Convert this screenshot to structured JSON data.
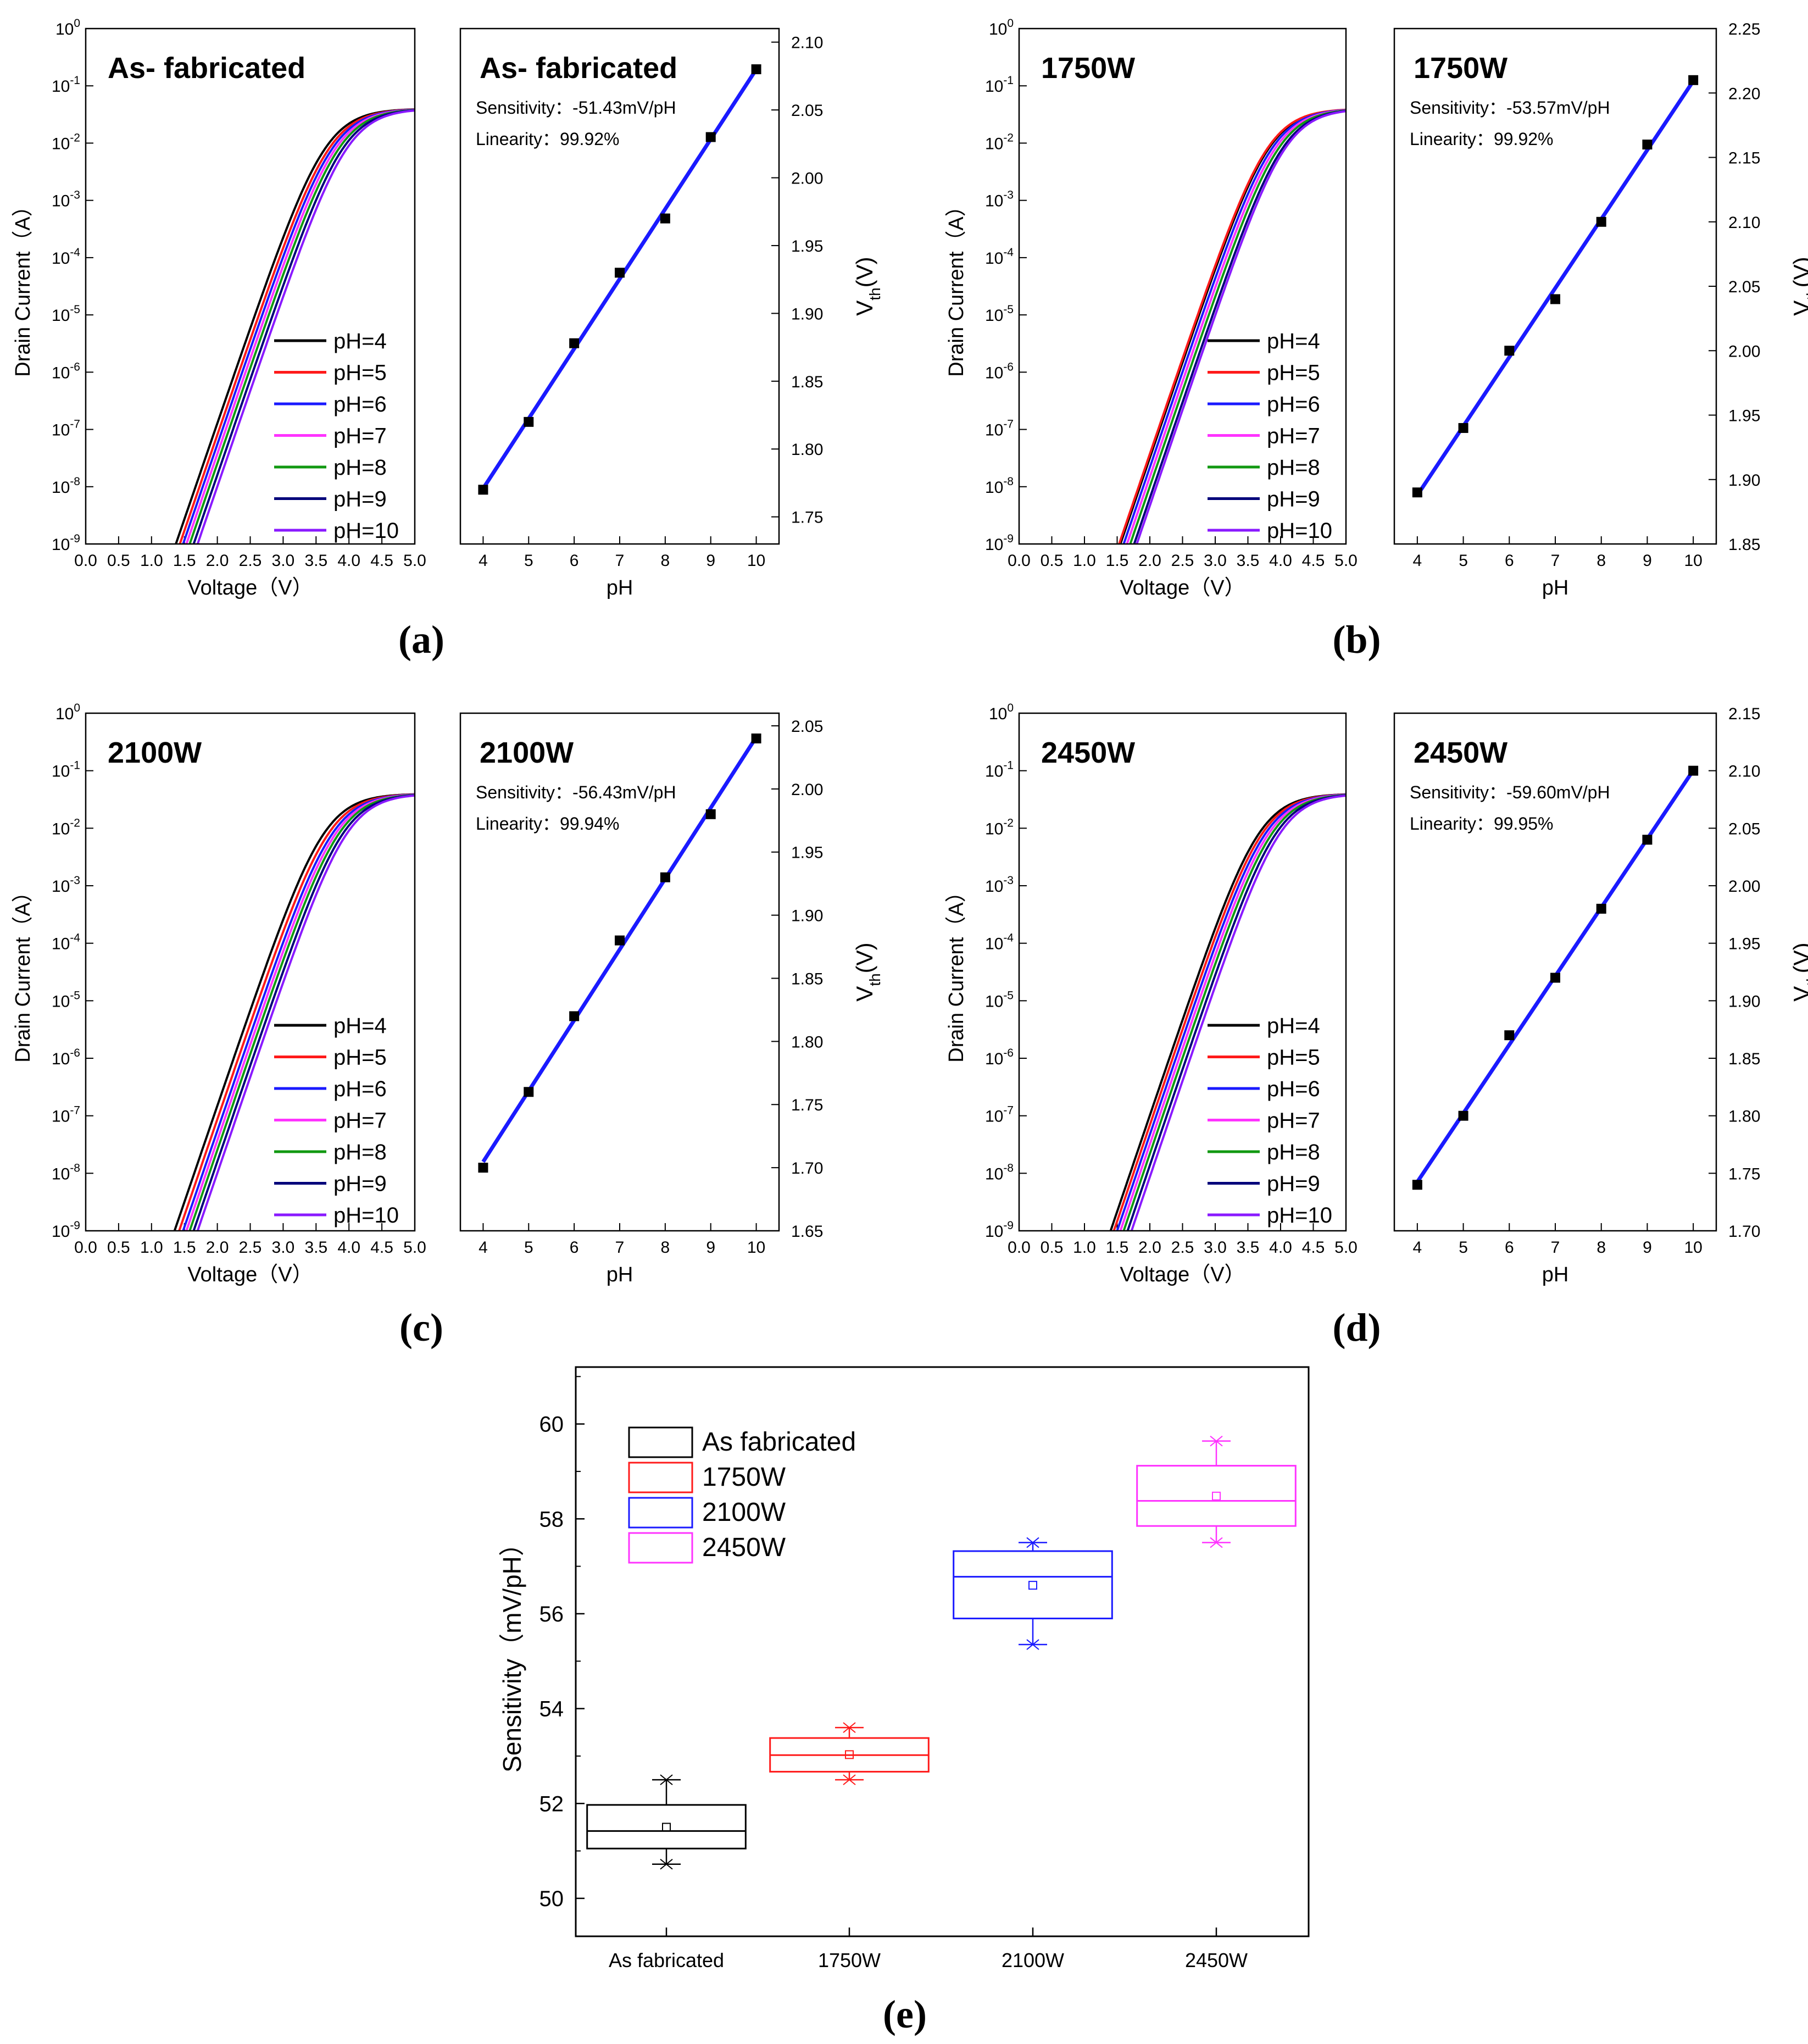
{
  "colors": {
    "ph_series": [
      "#000000",
      "#ff1a1a",
      "#1a1aff",
      "#ff33ff",
      "#119911",
      "#00007a",
      "#8a1aff"
    ],
    "fit_line": "#1a1aff",
    "box_colors": [
      "#000000",
      "#ff1a1a",
      "#1a1aff",
      "#ff33ff"
    ]
  },
  "chart_data": [
    {
      "type": "line",
      "panel": "a",
      "panel_label": "(a)",
      "title": "As- fabricated",
      "xlabel": "Voltage（V）",
      "ylabel": "Drain Current（A）",
      "xlim": [
        0,
        5
      ],
      "ylim_log10": [
        -9,
        0
      ],
      "xticks": [
        "0.0",
        "0.5",
        "1.0",
        "1.5",
        "2.0",
        "2.5",
        "3.0",
        "3.5",
        "4.0",
        "4.5",
        "5.0"
      ],
      "yticks": [
        {
          "base": "10",
          "exp": "0"
        },
        {
          "base": "10",
          "exp": "-1"
        },
        {
          "base": "10",
          "exp": "-2"
        },
        {
          "base": "10",
          "exp": "-3"
        },
        {
          "base": "10",
          "exp": "-4"
        },
        {
          "base": "10",
          "exp": "-5"
        },
        {
          "base": "10",
          "exp": "-6"
        },
        {
          "base": "10",
          "exp": "-7"
        },
        {
          "base": "10",
          "exp": "-8"
        },
        {
          "base": "10",
          "exp": "-9"
        }
      ],
      "legend": [
        "pH=4",
        "pH=5",
        "pH=6",
        "pH=7",
        "pH=8",
        "pH=9",
        "pH=10"
      ],
      "onset_voltage": [
        1.37,
        1.43,
        1.48,
        1.53,
        1.58,
        1.64,
        1.7
      ],
      "sat_current_log10": -1.4
    },
    {
      "type": "scatter",
      "panel": "a",
      "title": "As- fabricated",
      "sensitivity": "Sensitivity：-51.43mV/pH",
      "linearity": "Linearity：99.92%",
      "xlabel": "pH",
      "ylabel": "V",
      "ylabel_sub": "th",
      "ylabel_tail": "(V)",
      "xlim": [
        3.5,
        10.5
      ],
      "ylim": [
        1.73,
        2.11
      ],
      "xticks": [
        "4",
        "5",
        "6",
        "7",
        "8",
        "9",
        "10"
      ],
      "yticks": [
        "1.75",
        "1.80",
        "1.85",
        "1.90",
        "1.95",
        "2.00",
        "2.05",
        "2.10"
      ],
      "x": [
        4,
        5,
        6,
        7,
        8,
        9,
        10
      ],
      "y": [
        1.77,
        1.82,
        1.878,
        1.93,
        1.97,
        2.03,
        2.08
      ]
    },
    {
      "type": "line",
      "panel": "b",
      "panel_label": "(b)",
      "title": "1750W",
      "xlabel": "Voltage（V）",
      "ylabel": "Drain Current（A）",
      "xlim": [
        0,
        5
      ],
      "ylim_log10": [
        -9,
        0
      ],
      "xticks": [
        "0.0",
        "0.5",
        "1.0",
        "1.5",
        "2.0",
        "2.5",
        "3.0",
        "3.5",
        "4.0",
        "4.5",
        "5.0"
      ],
      "yticks": [
        {
          "base": "10",
          "exp": "0"
        },
        {
          "base": "10",
          "exp": "-1"
        },
        {
          "base": "10",
          "exp": "-2"
        },
        {
          "base": "10",
          "exp": "-3"
        },
        {
          "base": "10",
          "exp": "-4"
        },
        {
          "base": "10",
          "exp": "-5"
        },
        {
          "base": "10",
          "exp": "-6"
        },
        {
          "base": "10",
          "exp": "-7"
        },
        {
          "base": "10",
          "exp": "-8"
        },
        {
          "base": "10",
          "exp": "-9"
        }
      ],
      "legend": [
        "pH=4",
        "pH=5",
        "pH=6",
        "pH=7",
        "pH=8",
        "pH=9",
        "pH=10"
      ],
      "onset_voltage": [
        1.55,
        1.53,
        1.6,
        1.65,
        1.7,
        1.76,
        1.8
      ],
      "sat_current_log10": -1.4
    },
    {
      "type": "scatter",
      "panel": "b",
      "title": "1750W",
      "sensitivity": "Sensitivity：-53.57mV/pH",
      "linearity": "Linearity：99.92%",
      "xlabel": "pH",
      "ylabel": "V",
      "ylabel_sub": "th",
      "ylabel_tail": "(V)",
      "xlim": [
        3.5,
        10.5
      ],
      "ylim": [
        1.85,
        2.25
      ],
      "xticks": [
        "4",
        "5",
        "6",
        "7",
        "8",
        "9",
        "10"
      ],
      "yticks": [
        "1.85",
        "1.90",
        "1.95",
        "2.00",
        "2.05",
        "2.10",
        "2.15",
        "2.20",
        "2.25"
      ],
      "x": [
        4,
        5,
        6,
        7,
        8,
        9,
        10
      ],
      "y": [
        1.89,
        1.94,
        2.0,
        2.04,
        2.1,
        2.16,
        2.21
      ]
    },
    {
      "type": "line",
      "panel": "c",
      "panel_label": "(c)",
      "title": "2100W",
      "xlabel": "Voltage（V）",
      "ylabel": "Drain Current（A）",
      "xlim": [
        0,
        5
      ],
      "ylim_log10": [
        -9,
        0
      ],
      "xticks": [
        "0.0",
        "0.5",
        "1.0",
        "1.5",
        "2.0",
        "2.5",
        "3.0",
        "3.5",
        "4.0",
        "4.5",
        "5.0"
      ],
      "yticks": [
        {
          "base": "10",
          "exp": "0"
        },
        {
          "base": "10",
          "exp": "-1"
        },
        {
          "base": "10",
          "exp": "-2"
        },
        {
          "base": "10",
          "exp": "-3"
        },
        {
          "base": "10",
          "exp": "-4"
        },
        {
          "base": "10",
          "exp": "-5"
        },
        {
          "base": "10",
          "exp": "-6"
        },
        {
          "base": "10",
          "exp": "-7"
        },
        {
          "base": "10",
          "exp": "-8"
        },
        {
          "base": "10",
          "exp": "-9"
        }
      ],
      "legend": [
        "pH=4",
        "pH=5",
        "pH=6",
        "pH=7",
        "pH=8",
        "pH=9",
        "pH=10"
      ],
      "onset_voltage": [
        1.35,
        1.42,
        1.48,
        1.53,
        1.58,
        1.64,
        1.7
      ],
      "sat_current_log10": -1.4
    },
    {
      "type": "scatter",
      "panel": "c",
      "title": "2100W",
      "sensitivity": "Sensitivity：-56.43mV/pH",
      "linearity": "Linearity：99.94%",
      "xlabel": "pH",
      "ylabel": "V",
      "ylabel_sub": "th",
      "ylabel_tail": "(V)",
      "xlim": [
        3.5,
        10.5
      ],
      "ylim": [
        1.65,
        2.06
      ],
      "xticks": [
        "4",
        "5",
        "6",
        "7",
        "8",
        "9",
        "10"
      ],
      "yticks": [
        "1.65",
        "1.70",
        "1.75",
        "1.80",
        "1.85",
        "1.90",
        "1.95",
        "2.00",
        "2.05"
      ],
      "x": [
        4,
        5,
        6,
        7,
        8,
        9,
        10
      ],
      "y": [
        1.7,
        1.76,
        1.82,
        1.88,
        1.93,
        1.98,
        2.04
      ]
    },
    {
      "type": "line",
      "panel": "d",
      "panel_label": "(d)",
      "title": "2450W",
      "xlabel": "Voltage（V）",
      "ylabel": "Drain Current（A）",
      "xlim": [
        0,
        5
      ],
      "ylim_log10": [
        -9,
        0
      ],
      "xticks": [
        "0.0",
        "0.5",
        "1.0",
        "1.5",
        "2.0",
        "2.5",
        "3.0",
        "3.5",
        "4.0",
        "4.5",
        "5.0"
      ],
      "yticks": [
        {
          "base": "10",
          "exp": "0"
        },
        {
          "base": "10",
          "exp": "-1"
        },
        {
          "base": "10",
          "exp": "-2"
        },
        {
          "base": "10",
          "exp": "-3"
        },
        {
          "base": "10",
          "exp": "-4"
        },
        {
          "base": "10",
          "exp": "-5"
        },
        {
          "base": "10",
          "exp": "-6"
        },
        {
          "base": "10",
          "exp": "-7"
        },
        {
          "base": "10",
          "exp": "-8"
        },
        {
          "base": "10",
          "exp": "-9"
        }
      ],
      "legend": [
        "pH=4",
        "pH=5",
        "pH=6",
        "pH=7",
        "pH=8",
        "pH=9",
        "pH=10"
      ],
      "onset_voltage": [
        1.4,
        1.45,
        1.5,
        1.55,
        1.6,
        1.66,
        1.72
      ],
      "sat_current_log10": -1.4
    },
    {
      "type": "scatter",
      "panel": "d",
      "title": "2450W",
      "sensitivity": "Sensitivity：-59.60mV/pH",
      "linearity": "Linearity：99.95%",
      "xlabel": "pH",
      "ylabel": "V",
      "ylabel_sub": "th",
      "ylabel_tail": "(V)",
      "xlim": [
        3.5,
        10.5
      ],
      "ylim": [
        1.7,
        2.15
      ],
      "xticks": [
        "4",
        "5",
        "6",
        "7",
        "8",
        "9",
        "10"
      ],
      "yticks": [
        "1.70",
        "1.75",
        "1.80",
        "1.85",
        "1.90",
        "1.95",
        "2.00",
        "2.05",
        "2.10",
        "2.15"
      ],
      "x": [
        4,
        5,
        6,
        7,
        8,
        9,
        10
      ],
      "y": [
        1.74,
        1.8,
        1.87,
        1.92,
        1.98,
        2.04,
        2.1
      ]
    },
    {
      "type": "box",
      "panel": "e",
      "panel_label": "(e)",
      "ylabel": "Sensitivity（mV/pH）",
      "ylim": [
        49.2,
        61.2
      ],
      "yticks": [
        "50",
        "52",
        "54",
        "56",
        "58",
        "60"
      ],
      "categories": [
        "As fabricated",
        "1750W",
        "2100W",
        "2450W"
      ],
      "legend": [
        "As fabricated",
        "1750W",
        "2100W",
        "2450W"
      ],
      "boxes": [
        {
          "q1": 51.05,
          "median": 51.42,
          "q3": 51.97,
          "whisker_low": 50.72,
          "whisker_high": 52.5,
          "mean": 51.5
        },
        {
          "q1": 52.67,
          "median": 53.02,
          "q3": 53.38,
          "whisker_low": 52.5,
          "whisker_high": 53.6,
          "mean": 53.03
        },
        {
          "q1": 55.9,
          "median": 56.78,
          "q3": 57.32,
          "whisker_low": 55.35,
          "whisker_high": 57.5,
          "mean": 56.6
        },
        {
          "q1": 57.85,
          "median": 58.38,
          "q3": 59.12,
          "whisker_low": 57.5,
          "whisker_high": 59.64,
          "mean": 58.48
        }
      ]
    }
  ]
}
